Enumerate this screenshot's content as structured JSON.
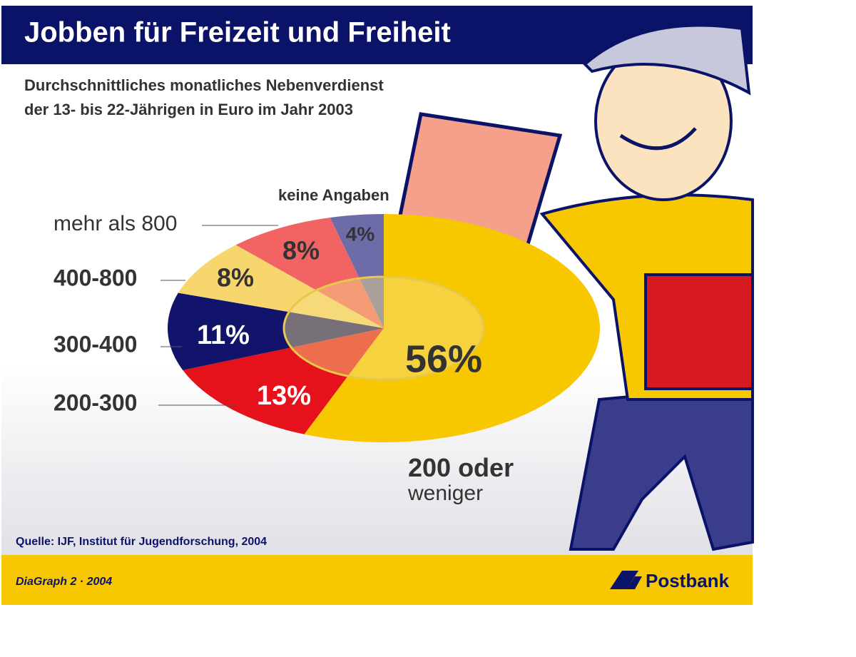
{
  "chart_data": {
    "type": "pie",
    "title": "Jobben für Freizeit und Freiheit",
    "subtitle": [
      "Durchschnittliches monatliches Nebenverdienst",
      "der 13- bis 22-Jährigen in Euro im Jahr 2003"
    ],
    "categories": [
      "200 oder weniger",
      "200-300",
      "300-400",
      "400-800",
      "mehr als 800",
      "keine Angaben"
    ],
    "values": [
      56,
      13,
      11,
      8,
      8,
      4
    ],
    "value_labels": [
      "56%",
      "13%",
      "11%",
      "8%",
      "8%",
      "4%"
    ],
    "colors": [
      "#f7c700",
      "#e5121b",
      "#12146b",
      "#f7d66e",
      "#f26464",
      "#6d6ca8"
    ],
    "source": "Quelle: IJF, Institut für Jugendforschung, 2004",
    "footer": "DiaGraph 2 · 2004",
    "brand": "Postbank"
  }
}
